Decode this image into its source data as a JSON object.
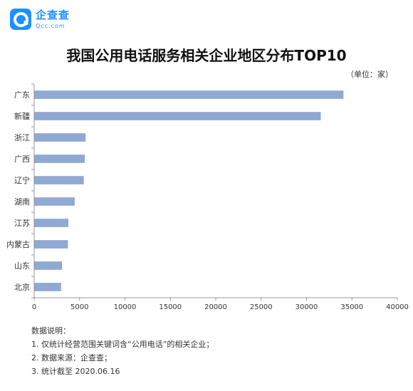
{
  "logo": {
    "name": "企查查",
    "sub": "Qcc.com"
  },
  "unit_label": "（单位：家）",
  "notes": {
    "heading": "数据说明：",
    "items": [
      "1. 仅统计经营范围关键词含“公用电话”的相关企业；",
      "2. 数据来源：企查查；",
      "3. 统计截至 2020.06.16"
    ]
  },
  "colors": {
    "bar": "#8fa9d3",
    "bar_stroke": "#7c96c2",
    "axis": "#999999",
    "logo": "#1e90ff"
  },
  "chart_data": {
    "type": "bar",
    "orientation": "horizontal",
    "title": "我国公用电话服务相关企业地区分布TOP10",
    "categories": [
      "广东",
      "新疆",
      "浙江",
      "广西",
      "辽宁",
      "湖南",
      "江苏",
      "内蒙古",
      "山东",
      "北京"
    ],
    "values": [
      34000,
      31500,
      5600,
      5500,
      5400,
      4400,
      3700,
      3650,
      3000,
      2900
    ],
    "xlim": [
      0,
      40000
    ],
    "xticks": [
      0,
      5000,
      10000,
      15000,
      20000,
      25000,
      30000,
      35000,
      40000
    ],
    "xlabel": "",
    "ylabel": "",
    "grid": false,
    "legend": "none"
  }
}
